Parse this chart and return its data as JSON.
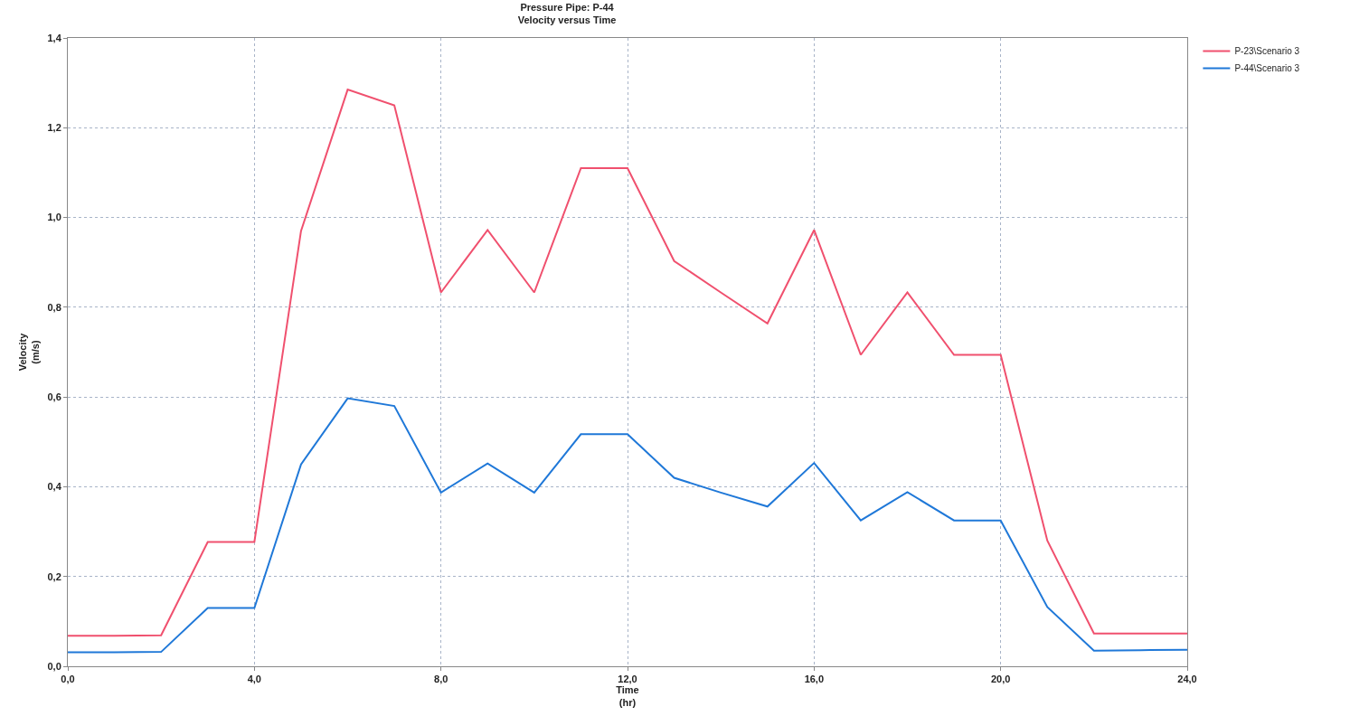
{
  "chart_data": {
    "type": "line",
    "title": "Pressure Pipe: P-44\nVelocity versus Time",
    "xlabel": "Time\n(hr)",
    "ylabel": "Velocity\n(m/s)",
    "x": [
      0,
      1,
      2,
      3,
      4,
      5,
      6,
      7,
      8,
      9,
      10,
      11,
      12,
      13,
      14,
      15,
      16,
      17,
      18,
      19,
      20,
      21,
      22,
      23,
      24
    ],
    "series": [
      {
        "name": "P-23\\Scenario 3",
        "color": "#f0506e",
        "values": [
          0.068,
          0.068,
          0.069,
          0.277,
          0.277,
          0.97,
          1.285,
          1.25,
          0.833,
          0.972,
          0.833,
          1.11,
          1.11,
          0.903,
          0.833,
          0.764,
          0.972,
          0.694,
          0.833,
          0.694,
          0.694,
          0.28,
          0.073,
          0.073,
          0.073
        ]
      },
      {
        "name": "P-44\\Scenario 3",
        "color": "#1f78d8",
        "values": [
          0.031,
          0.031,
          0.032,
          0.13,
          0.13,
          0.45,
          0.597,
          0.58,
          0.387,
          0.452,
          0.387,
          0.517,
          0.517,
          0.42,
          0.387,
          0.356,
          0.453,
          0.325,
          0.388,
          0.325,
          0.325,
          0.132,
          0.035,
          0.036,
          0.037
        ]
      }
    ],
    "xlim": [
      0,
      24
    ],
    "xticks": [
      {
        "value": 0,
        "label": "0,0"
      },
      {
        "value": 4,
        "label": "4,0"
      },
      {
        "value": 8,
        "label": "8,0"
      },
      {
        "value": 12,
        "label": "12,0"
      },
      {
        "value": 16,
        "label": "16,0"
      },
      {
        "value": 20,
        "label": "20,0"
      },
      {
        "value": 24,
        "label": "24,0"
      }
    ],
    "ylim": [
      0,
      1.4
    ],
    "yticks": [
      {
        "value": 0,
        "label": "0,0"
      },
      {
        "value": 0.2,
        "label": "0,2"
      },
      {
        "value": 0.4,
        "label": "0,4"
      },
      {
        "value": 0.6,
        "label": "0,6"
      },
      {
        "value": 0.8,
        "label": "0,8"
      },
      {
        "value": 1,
        "label": "1,0"
      },
      {
        "value": 1.2,
        "label": "1,2"
      },
      {
        "value": 1.4,
        "label": "1,4"
      }
    ],
    "grid": true,
    "legend": "top right",
    "line_style": "solid"
  }
}
